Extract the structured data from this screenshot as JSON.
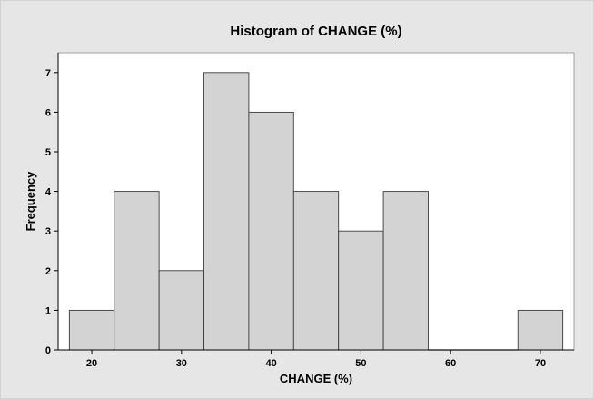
{
  "chart_data": {
    "type": "bar",
    "subtype": "histogram",
    "title": "Histogram of CHANGE (%)",
    "xlabel": "CHANGE (%)",
    "ylabel": "Frequency",
    "bin_width": 5,
    "bins": [
      {
        "start": 17.5,
        "end": 22.5,
        "count": 1
      },
      {
        "start": 22.5,
        "end": 27.5,
        "count": 4
      },
      {
        "start": 27.5,
        "end": 32.5,
        "count": 2
      },
      {
        "start": 32.5,
        "end": 37.5,
        "count": 7
      },
      {
        "start": 37.5,
        "end": 42.5,
        "count": 6
      },
      {
        "start": 42.5,
        "end": 47.5,
        "count": 4
      },
      {
        "start": 47.5,
        "end": 52.5,
        "count": 3
      },
      {
        "start": 52.5,
        "end": 57.5,
        "count": 4
      },
      {
        "start": 57.5,
        "end": 62.5,
        "count": 0
      },
      {
        "start": 62.5,
        "end": 67.5,
        "count": 0
      },
      {
        "start": 67.5,
        "end": 72.5,
        "count": 1
      }
    ],
    "xlim": [
      16.25,
      73.75
    ],
    "ylim": [
      0,
      7.5
    ],
    "xticks": [
      20,
      30,
      40,
      50,
      60,
      70
    ],
    "yticks": [
      0,
      1,
      2,
      3,
      4,
      5,
      6,
      7
    ],
    "grid": false,
    "colors": {
      "bar_fill": "#d3d3d3",
      "bar_edge": "#3c3c3c",
      "background": "#e6e6e6",
      "plot_background": "#ffffff"
    }
  }
}
